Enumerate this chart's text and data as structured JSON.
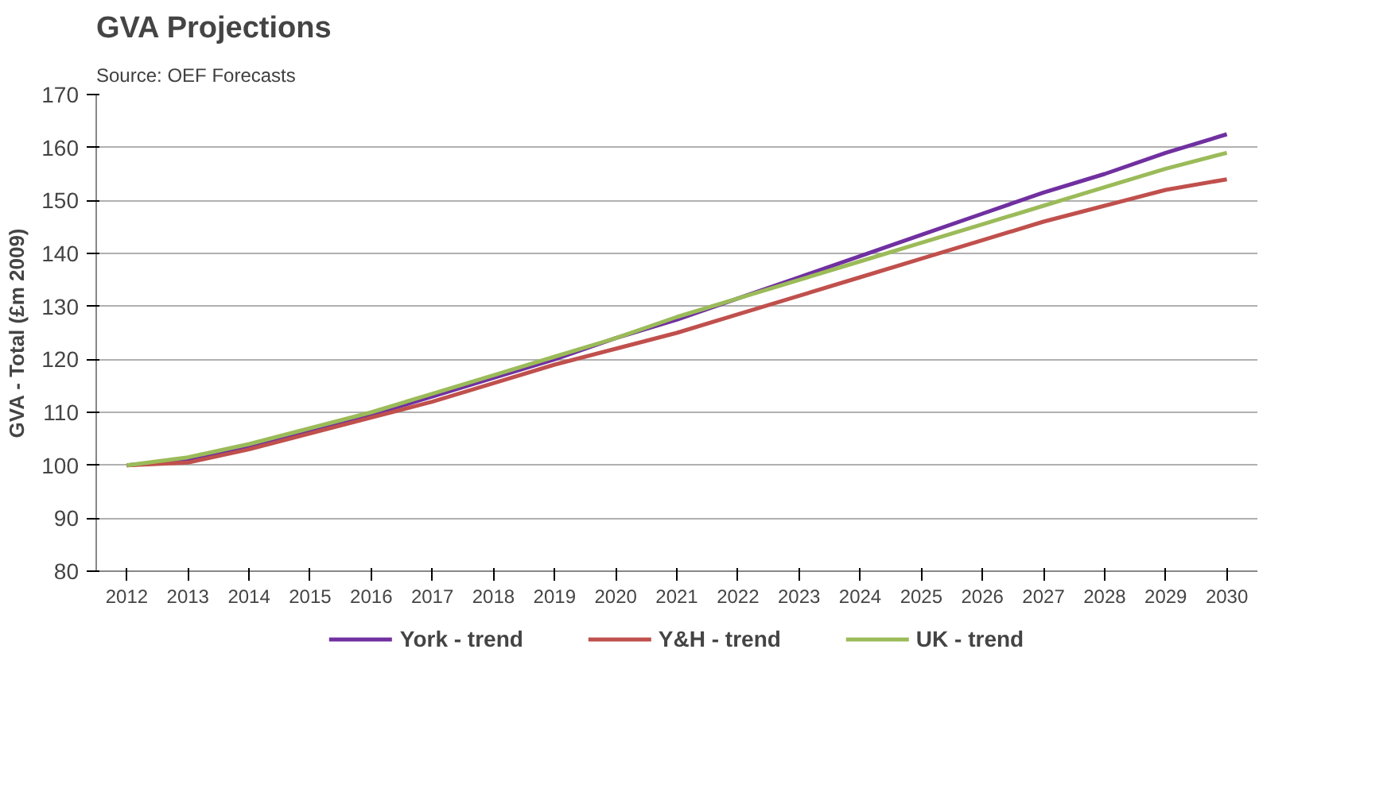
{
  "chart_data": {
    "type": "line",
    "title": "GVA Projections",
    "subtitle": "Source: OEF Forecasts",
    "ylabel": "GVA - Total (£m 2009)",
    "categories": [
      "2012",
      "2013",
      "2014",
      "2015",
      "2016",
      "2017",
      "2018",
      "2019",
      "2020",
      "2021",
      "2022",
      "2023",
      "2024",
      "2025",
      "2026",
      "2027",
      "2028",
      "2029",
      "2030"
    ],
    "series": [
      {
        "name": "York - trend",
        "color": "#7030a0",
        "values": [
          100,
          101,
          103.5,
          106.5,
          109.5,
          113,
          116.5,
          120,
          124,
          127.5,
          131.5,
          135.5,
          139.5,
          143.5,
          147.5,
          151.5,
          155,
          159,
          162.5
        ]
      },
      {
        "name": "Y&H - trend",
        "color": "#c0504d",
        "values": [
          100,
          100.5,
          103,
          106,
          109,
          112,
          115.5,
          119,
          122,
          125,
          128.5,
          132,
          135.5,
          139,
          142.5,
          146,
          149,
          152,
          154
        ]
      },
      {
        "name": "UK - trend",
        "color": "#9bbb59",
        "values": [
          100,
          101.5,
          104,
          107,
          110,
          113.5,
          117,
          120.5,
          124,
          128,
          131.5,
          135,
          138.5,
          142,
          145.5,
          149,
          152.5,
          156,
          159
        ]
      }
    ],
    "ylim": [
      80,
      170
    ],
    "yticks": [
      80,
      90,
      100,
      110,
      120,
      130,
      140,
      150,
      160,
      170
    ],
    "grid": "y",
    "legend": "bottom",
    "marker": "none",
    "line_style": "solid"
  }
}
